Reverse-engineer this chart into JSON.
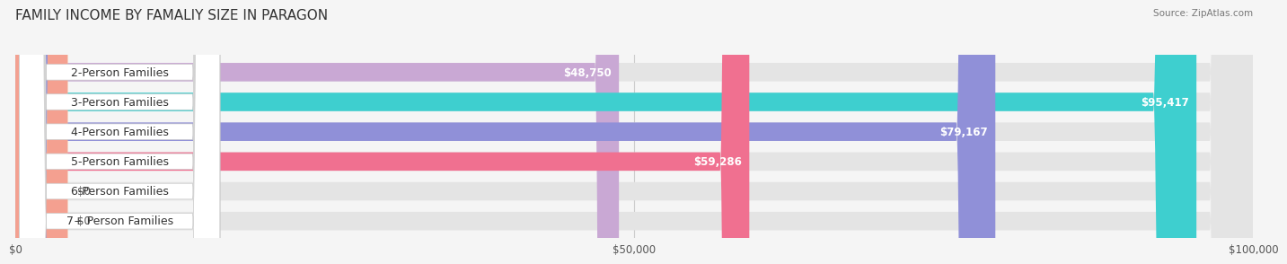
{
  "title": "FAMILY INCOME BY FAMALIY SIZE IN PARAGON",
  "source": "Source: ZipAtlas.com",
  "categories": [
    "2-Person Families",
    "3-Person Families",
    "4-Person Families",
    "5-Person Families",
    "6-Person Families",
    "7+ Person Families"
  ],
  "values": [
    48750,
    95417,
    79167,
    59286,
    0,
    0
  ],
  "bar_colors": [
    "#c9a8d4",
    "#3ecfcf",
    "#9090d8",
    "#f07090",
    "#f5c897",
    "#f4a090"
  ],
  "value_labels": [
    "$48,750",
    "$95,417",
    "$79,167",
    "$59,286",
    "$0",
    "$0"
  ],
  "xmax": 100000,
  "xticks": [
    0,
    50000,
    100000
  ],
  "xtick_labels": [
    "$0",
    "$50,000",
    "$100,000"
  ],
  "background_color": "#f5f5f5",
  "bar_bg_color": "#e4e4e4",
  "bar_height": 0.62,
  "title_fontsize": 11,
  "label_fontsize": 9,
  "value_fontsize": 8.5
}
